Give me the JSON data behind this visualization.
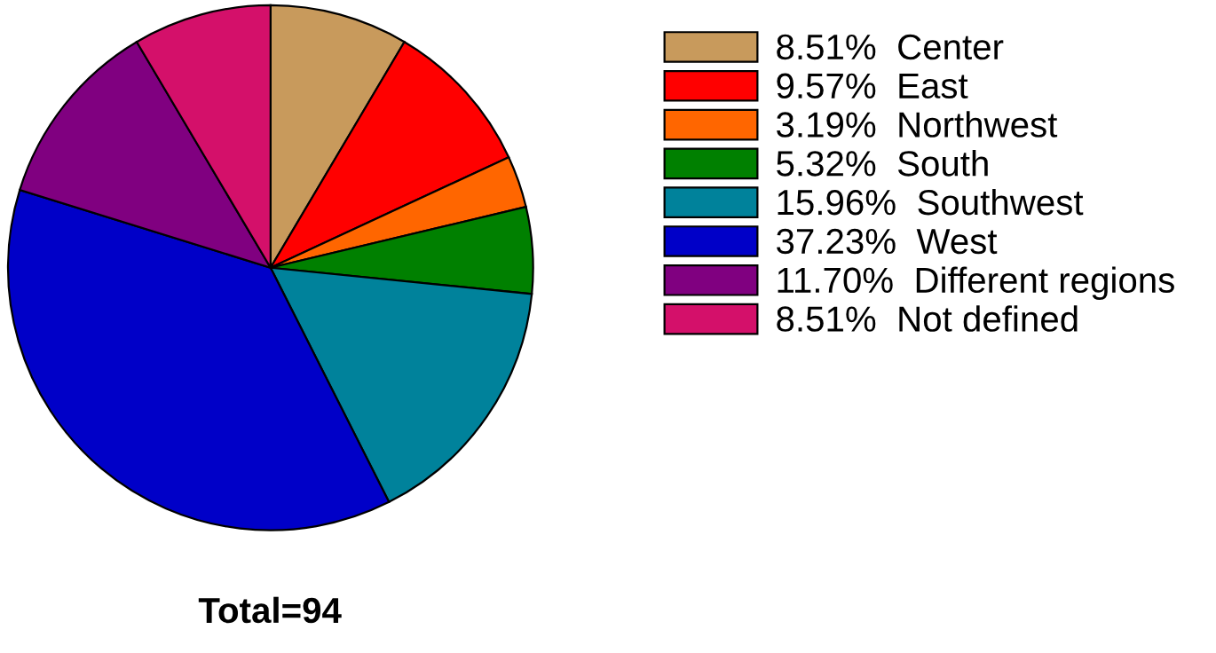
{
  "chart_data": {
    "type": "pie",
    "categories": [
      "Center",
      "East",
      "Northwest",
      "South",
      "Southwest",
      "West",
      "Different regions",
      "Not defined"
    ],
    "values": [
      8.51,
      9.57,
      3.19,
      5.32,
      15.96,
      37.23,
      11.7,
      8.51
    ],
    "value_labels": [
      "8.51%",
      "9.57%",
      "3.19%",
      "5.32%",
      "15.96%",
      "37.23%",
      "11.70%",
      "8.51%"
    ],
    "colors": [
      "#c89a5c",
      "#ff0000",
      "#ff6600",
      "#008000",
      "#00829b",
      "#0000c8",
      "#800080",
      "#d4106a"
    ],
    "legend": "right",
    "annotations": [
      "Total=94"
    ]
  }
}
